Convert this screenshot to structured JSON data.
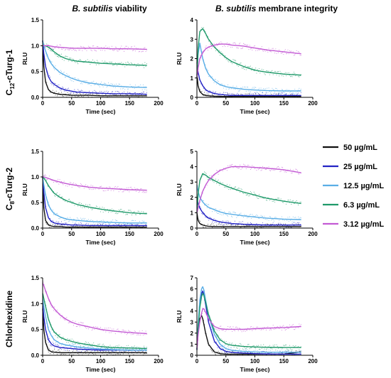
{
  "column_titles": [
    {
      "species": "B. subtilis",
      "rest": " viability"
    },
    {
      "species": "B. subtilis",
      "rest": " membrane integrity"
    }
  ],
  "row_labels": [
    {
      "base": "C",
      "sub": "12",
      "rest": "-cTurg-1"
    },
    {
      "base": "C",
      "sub": "8",
      "rest": "-cTurg-2"
    },
    {
      "base": "Chlorhexidine",
      "sub": "",
      "rest": ""
    }
  ],
  "legend": [
    {
      "label": "50 µg/mL",
      "color": "#111111"
    },
    {
      "label": "25 µg/mL",
      "color": "#2323c4"
    },
    {
      "label": "12.5 µg/mL",
      "color": "#5aaee6"
    },
    {
      "label": "6.3 µg/mL",
      "color": "#1f9a6a"
    },
    {
      "label": "3.12 µg/mL",
      "color": "#c35ad4"
    }
  ],
  "chart_data": [
    {
      "id": "c12-viability",
      "type": "line",
      "xlabel": "Time (sec)",
      "ylabel": "RLU",
      "xlim": [
        0,
        200
      ],
      "ylim": [
        0,
        1.5
      ],
      "xticks": [
        0,
        50,
        100,
        150,
        200
      ],
      "yticks": [
        0.0,
        0.5,
        1.0,
        1.5
      ],
      "ytick_labels": [
        "0.0",
        "0.5",
        "1.0",
        "1.5"
      ],
      "x": [
        0,
        2,
        5,
        10,
        15,
        20,
        30,
        40,
        50,
        60,
        80,
        100,
        120,
        150,
        180
      ],
      "series": [
        {
          "name": "50 µg/mL",
          "values": [
            1.1,
            0.6,
            0.3,
            0.15,
            0.1,
            0.08,
            0.06,
            0.05,
            0.04,
            0.04,
            0.04,
            0.03,
            0.03,
            0.03,
            0.03
          ]
        },
        {
          "name": "25 µg/mL",
          "values": [
            1.1,
            0.85,
            0.6,
            0.4,
            0.3,
            0.25,
            0.18,
            0.14,
            0.12,
            0.1,
            0.09,
            0.08,
            0.07,
            0.07,
            0.06
          ]
        },
        {
          "name": "12.5 µg/mL",
          "values": [
            1.1,
            1.0,
            0.9,
            0.75,
            0.65,
            0.58,
            0.48,
            0.42,
            0.37,
            0.33,
            0.28,
            0.25,
            0.22,
            0.2,
            0.19
          ]
        },
        {
          "name": "6.3 µg/mL",
          "values": [
            1.0,
            1.0,
            1.0,
            0.97,
            0.93,
            0.88,
            0.8,
            0.75,
            0.72,
            0.7,
            0.68,
            0.66,
            0.65,
            0.63,
            0.62
          ]
        },
        {
          "name": "3.12 µg/mL",
          "values": [
            1.0,
            1.0,
            1.0,
            1.0,
            0.99,
            0.98,
            0.97,
            0.96,
            0.95,
            0.95,
            0.95,
            0.95,
            0.94,
            0.94,
            0.93
          ]
        }
      ]
    },
    {
      "id": "c12-membrane",
      "type": "line",
      "xlabel": "Time (sec)",
      "ylabel": "RLU",
      "xlim": [
        0,
        200
      ],
      "ylim": [
        0,
        4
      ],
      "xticks": [
        0,
        50,
        100,
        150,
        200
      ],
      "yticks": [
        0,
        1,
        2,
        3,
        4
      ],
      "ytick_labels": [
        "0",
        "1",
        "2",
        "3",
        "4"
      ],
      "x": [
        0,
        2,
        5,
        10,
        15,
        20,
        30,
        40,
        50,
        60,
        80,
        100,
        120,
        150,
        180
      ],
      "series": [
        {
          "name": "50 µg/mL",
          "values": [
            1.2,
            0.6,
            0.3,
            0.15,
            0.1,
            0.08,
            0.06,
            0.05,
            0.05,
            0.05,
            0.05,
            0.05,
            0.05,
            0.05,
            0.05
          ]
        },
        {
          "name": "25 µg/mL",
          "values": [
            1.8,
            1.3,
            0.9,
            0.6,
            0.4,
            0.3,
            0.2,
            0.15,
            0.12,
            0.1,
            0.1,
            0.1,
            0.1,
            0.1,
            0.1
          ]
        },
        {
          "name": "12.5 µg/mL",
          "values": [
            1.2,
            2.2,
            2.8,
            2.0,
            1.5,
            1.2,
            0.85,
            0.65,
            0.55,
            0.5,
            0.42,
            0.38,
            0.35,
            0.33,
            0.33
          ]
        },
        {
          "name": "6.3 µg/mL",
          "values": [
            1.0,
            2.5,
            3.4,
            3.55,
            3.3,
            3.0,
            2.6,
            2.3,
            2.05,
            1.85,
            1.6,
            1.4,
            1.3,
            1.2,
            1.15
          ]
        },
        {
          "name": "3.12 µg/mL",
          "values": [
            1.0,
            1.5,
            2.0,
            2.3,
            2.5,
            2.6,
            2.7,
            2.75,
            2.75,
            2.7,
            2.65,
            2.55,
            2.45,
            2.35,
            2.25
          ]
        }
      ]
    },
    {
      "id": "c8-viability",
      "type": "line",
      "xlabel": "Time (sec)",
      "ylabel": "RLU",
      "xlim": [
        0,
        200
      ],
      "ylim": [
        0,
        1.5
      ],
      "xticks": [
        0,
        50,
        100,
        150,
        200
      ],
      "yticks": [
        0.0,
        0.5,
        1.0,
        1.5
      ],
      "ytick_labels": [
        "0.0",
        "0.5",
        "1.0",
        "1.5"
      ],
      "x": [
        0,
        2,
        5,
        10,
        15,
        20,
        30,
        40,
        50,
        60,
        80,
        100,
        120,
        150,
        180
      ],
      "series": [
        {
          "name": "50 µg/mL",
          "values": [
            1.0,
            0.4,
            0.15,
            0.06,
            0.04,
            0.03,
            0.03,
            0.02,
            0.02,
            0.02,
            0.02,
            0.02,
            0.02,
            0.02,
            0.02
          ]
        },
        {
          "name": "25 µg/mL",
          "values": [
            1.0,
            0.7,
            0.4,
            0.2,
            0.13,
            0.1,
            0.08,
            0.07,
            0.06,
            0.06,
            0.05,
            0.05,
            0.05,
            0.05,
            0.05
          ]
        },
        {
          "name": "12.5 µg/mL",
          "values": [
            1.0,
            0.85,
            0.65,
            0.45,
            0.35,
            0.28,
            0.22,
            0.18,
            0.16,
            0.15,
            0.13,
            0.12,
            0.11,
            0.1,
            0.1
          ]
        },
        {
          "name": "6.3 µg/mL",
          "values": [
            1.0,
            0.98,
            0.93,
            0.83,
            0.75,
            0.68,
            0.6,
            0.54,
            0.5,
            0.46,
            0.41,
            0.37,
            0.34,
            0.3,
            0.28
          ]
        },
        {
          "name": "3.12 µg/mL",
          "values": [
            1.0,
            1.0,
            0.99,
            0.97,
            0.95,
            0.93,
            0.9,
            0.87,
            0.85,
            0.83,
            0.8,
            0.78,
            0.77,
            0.75,
            0.74
          ]
        }
      ]
    },
    {
      "id": "c8-membrane",
      "type": "line",
      "xlabel": "Time (sec)",
      "ylabel": "RLU",
      "xlim": [
        0,
        200
      ],
      "ylim": [
        0,
        5
      ],
      "xticks": [
        0,
        50,
        100,
        150,
        200
      ],
      "yticks": [
        0,
        1,
        2,
        3,
        4,
        5
      ],
      "ytick_labels": [
        "0",
        "1",
        "2",
        "3",
        "4",
        "5"
      ],
      "x": [
        0,
        2,
        5,
        10,
        15,
        20,
        30,
        40,
        50,
        60,
        80,
        100,
        120,
        150,
        180
      ],
      "series": [
        {
          "name": "50 µg/mL",
          "values": [
            1.0,
            0.5,
            0.3,
            0.2,
            0.15,
            0.12,
            0.1,
            0.1,
            0.1,
            0.1,
            0.1,
            0.1,
            0.1,
            0.1,
            0.1
          ]
        },
        {
          "name": "25 µg/mL",
          "values": [
            2.0,
            1.6,
            1.3,
            1.0,
            0.8,
            0.65,
            0.5,
            0.4,
            0.35,
            0.3,
            0.25,
            0.22,
            0.2,
            0.2,
            0.2
          ]
        },
        {
          "name": "12.5 µg/mL",
          "values": [
            2.8,
            2.4,
            2.0,
            1.7,
            1.5,
            1.35,
            1.2,
            1.05,
            0.95,
            0.9,
            0.8,
            0.72,
            0.65,
            0.58,
            0.55
          ]
        },
        {
          "name": "6.3 µg/mL",
          "values": [
            1.0,
            2.2,
            3.1,
            3.55,
            3.45,
            3.3,
            3.1,
            2.9,
            2.75,
            2.6,
            2.35,
            2.15,
            1.95,
            1.75,
            1.6
          ]
        },
        {
          "name": "3.12 µg/mL",
          "values": [
            1.0,
            1.3,
            1.8,
            2.4,
            2.8,
            3.1,
            3.5,
            3.75,
            3.9,
            4.0,
            4.0,
            3.95,
            3.9,
            3.8,
            3.6
          ]
        }
      ]
    },
    {
      "id": "chx-viability",
      "type": "line",
      "xlabel": "Time (sec)",
      "ylabel": "RLU",
      "xlim": [
        0,
        200
      ],
      "ylim": [
        0,
        1.5
      ],
      "xticks": [
        0,
        50,
        100,
        150,
        200
      ],
      "yticks": [
        0.0,
        0.5,
        1.0,
        1.5
      ],
      "ytick_labels": [
        "0.0",
        "0.5",
        "1.0",
        "1.5"
      ],
      "x": [
        0,
        2,
        5,
        10,
        15,
        20,
        30,
        40,
        50,
        60,
        80,
        100,
        120,
        150,
        180
      ],
      "series": [
        {
          "name": "50 µg/mL",
          "values": [
            0.9,
            0.5,
            0.25,
            0.1,
            0.07,
            0.06,
            0.05,
            0.05,
            0.05,
            0.05,
            0.05,
            0.05,
            0.05,
            0.05,
            0.05
          ]
        },
        {
          "name": "25 µg/mL",
          "values": [
            1.0,
            0.75,
            0.5,
            0.3,
            0.22,
            0.18,
            0.15,
            0.14,
            0.13,
            0.12,
            0.11,
            0.1,
            0.1,
            0.1,
            0.1
          ]
        },
        {
          "name": "12.5 µg/mL",
          "values": [
            1.1,
            0.95,
            0.75,
            0.5,
            0.38,
            0.3,
            0.23,
            0.2,
            0.18,
            0.16,
            0.14,
            0.12,
            0.11,
            0.1,
            0.1
          ]
        },
        {
          "name": "6.3 µg/mL",
          "values": [
            1.2,
            1.1,
            0.95,
            0.7,
            0.55,
            0.45,
            0.35,
            0.3,
            0.27,
            0.24,
            0.2,
            0.17,
            0.15,
            0.14,
            0.13
          ]
        },
        {
          "name": "3.12 µg/mL",
          "values": [
            1.4,
            1.35,
            1.25,
            1.1,
            0.98,
            0.9,
            0.78,
            0.7,
            0.64,
            0.6,
            0.55,
            0.5,
            0.47,
            0.44,
            0.42
          ]
        }
      ]
    },
    {
      "id": "chx-membrane",
      "type": "line",
      "xlabel": "Time (sec)",
      "ylabel": "RLU",
      "xlim": [
        0,
        200
      ],
      "ylim": [
        0,
        7
      ],
      "xticks": [
        0,
        50,
        100,
        150,
        200
      ],
      "yticks": [
        0,
        1,
        2,
        3,
        4,
        5,
        6,
        7
      ],
      "ytick_labels": [
        "0",
        "1",
        "2",
        "3",
        "4",
        "5",
        "6",
        "7"
      ],
      "x": [
        0,
        2,
        5,
        8,
        10,
        12,
        15,
        20,
        30,
        40,
        50,
        60,
        80,
        100,
        120,
        150,
        180
      ],
      "series": [
        {
          "name": "50 µg/mL",
          "values": [
            0.5,
            2.0,
            3.3,
            3.6,
            3.3,
            2.8,
            2.0,
            1.0,
            0.3,
            0.15,
            0.1,
            0.1,
            0.1,
            0.1,
            0.1,
            0.1,
            0.3
          ]
        },
        {
          "name": "25 µg/mL",
          "values": [
            0.5,
            2.5,
            4.5,
            5.6,
            5.8,
            5.5,
            4.6,
            3.0,
            1.3,
            0.6,
            0.35,
            0.25,
            0.2,
            0.15,
            0.12,
            0.1,
            0.1
          ]
        },
        {
          "name": "12.5 µg/mL",
          "values": [
            0.5,
            2.8,
            5.0,
            6.0,
            6.2,
            5.9,
            5.0,
            3.6,
            1.9,
            1.0,
            0.6,
            0.45,
            0.35,
            0.3,
            0.28,
            0.27,
            0.27
          ]
        },
        {
          "name": "6.3 µg/mL",
          "values": [
            0.5,
            2.4,
            4.3,
            5.3,
            5.6,
            5.4,
            4.8,
            3.7,
            2.2,
            1.4,
            1.05,
            0.9,
            0.8,
            0.75,
            0.72,
            0.7,
            0.7
          ]
        },
        {
          "name": "3.12 µg/mL",
          "values": [
            0.5,
            1.8,
            3.0,
            3.8,
            4.2,
            4.2,
            3.9,
            3.3,
            2.6,
            2.4,
            2.35,
            2.35,
            2.35,
            2.4,
            2.45,
            2.5,
            2.6
          ]
        }
      ]
    }
  ]
}
